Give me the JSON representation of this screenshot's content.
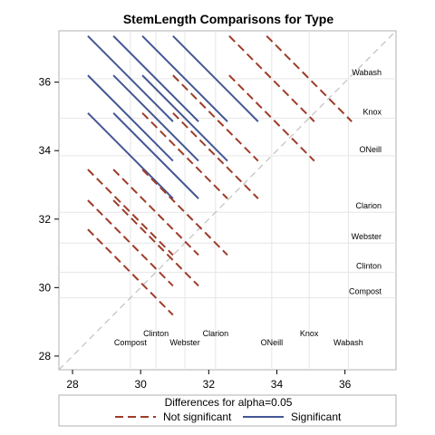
{
  "colors": {
    "not_significant": "#9E3B28",
    "significant": "#445694",
    "reference_line": "#C0C0C0",
    "grid": "#E6E6E6",
    "frame": "#B0B0B0"
  },
  "chart_data": {
    "type": "line",
    "title": "StemLength Comparisons for Type",
    "xlabel": "",
    "ylabel": "",
    "xlim": [
      27.6,
      37.5
    ],
    "ylim": [
      27.6,
      37.5
    ],
    "ticks": [
      28,
      30,
      32,
      34,
      36
    ],
    "grid": true,
    "reference_line": "diagonal y=x",
    "groups": [
      {
        "label": "Compost",
        "mean": 29.7
      },
      {
        "label": "Clinton",
        "mean": 30.45
      },
      {
        "label": "Webster",
        "mean": 31.3
      },
      {
        "label": "Clarion",
        "mean": 32.2
      },
      {
        "label": "ONeill",
        "mean": 33.85
      },
      {
        "label": "Knox",
        "mean": 34.95
      },
      {
        "label": "Wabash",
        "mean": 36.1
      }
    ],
    "comparisons": [
      {
        "a": "Wabash",
        "b": "Knox",
        "significant": false
      },
      {
        "a": "Wabash",
        "b": "ONeill",
        "significant": false
      },
      {
        "a": "Wabash",
        "b": "Clarion",
        "significant": true
      },
      {
        "a": "Wabash",
        "b": "Webster",
        "significant": true
      },
      {
        "a": "Wabash",
        "b": "Clinton",
        "significant": true
      },
      {
        "a": "Wabash",
        "b": "Compost",
        "significant": true
      },
      {
        "a": "Knox",
        "b": "ONeill",
        "significant": false
      },
      {
        "a": "Knox",
        "b": "Clarion",
        "significant": false
      },
      {
        "a": "Knox",
        "b": "Webster",
        "significant": true
      },
      {
        "a": "Knox",
        "b": "Clinton",
        "significant": true
      },
      {
        "a": "Knox",
        "b": "Compost",
        "significant": true
      },
      {
        "a": "ONeill",
        "b": "Clarion",
        "significant": false
      },
      {
        "a": "ONeill",
        "b": "Webster",
        "significant": false
      },
      {
        "a": "ONeill",
        "b": "Clinton",
        "significant": true
      },
      {
        "a": "ONeill",
        "b": "Compost",
        "significant": true
      },
      {
        "a": "Clarion",
        "b": "Webster",
        "significant": false
      },
      {
        "a": "Clarion",
        "b": "Clinton",
        "significant": false
      },
      {
        "a": "Clarion",
        "b": "Compost",
        "significant": false
      },
      {
        "a": "Webster",
        "b": "Clinton",
        "significant": false
      },
      {
        "a": "Webster",
        "b": "Compost",
        "significant": false
      },
      {
        "a": "Clinton",
        "b": "Compost",
        "significant": false
      }
    ],
    "legend": {
      "title": "Differences for alpha=0.05",
      "items": [
        {
          "label": "Not significant",
          "style": "dashed",
          "color_key": "not_significant"
        },
        {
          "label": "Significant",
          "style": "solid",
          "color_key": "significant"
        }
      ],
      "placement": "bottom"
    }
  }
}
